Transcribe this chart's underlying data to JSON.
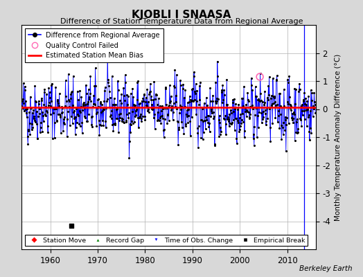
{
  "title": "KJOBLI I SNAASA",
  "subtitle": "Difference of Station Temperature Data from Regional Average",
  "ylabel": "Monthly Temperature Anomaly Difference (°C)",
  "xlim": [
    1954,
    2016
  ],
  "ylim": [
    -5,
    3
  ],
  "yticks": [
    -4,
    -3,
    -2,
    -1,
    0,
    1,
    2
  ],
  "ytick_labels": [
    "-4",
    "-3",
    "-2",
    "-1",
    "0",
    "1",
    "2"
  ],
  "xticks": [
    1960,
    1970,
    1980,
    1990,
    2000,
    2010
  ],
  "mean_bias": 0.05,
  "bias_color": "#ff0000",
  "line_color": "#0000ff",
  "marker_color": "#000000",
  "qc_color": "#ff69b4",
  "background_color": "#d8d8d8",
  "plot_bg_color": "#ffffff",
  "grid_color": "#b0b0b0",
  "empirical_break_x": 1964.5,
  "empirical_break_y": -4.15,
  "tobs_x": 2013.5,
  "watermark": "Berkeley Earth",
  "seed": 42,
  "n_points": 720,
  "start_year": 1954.0,
  "end_year": 2015.9
}
